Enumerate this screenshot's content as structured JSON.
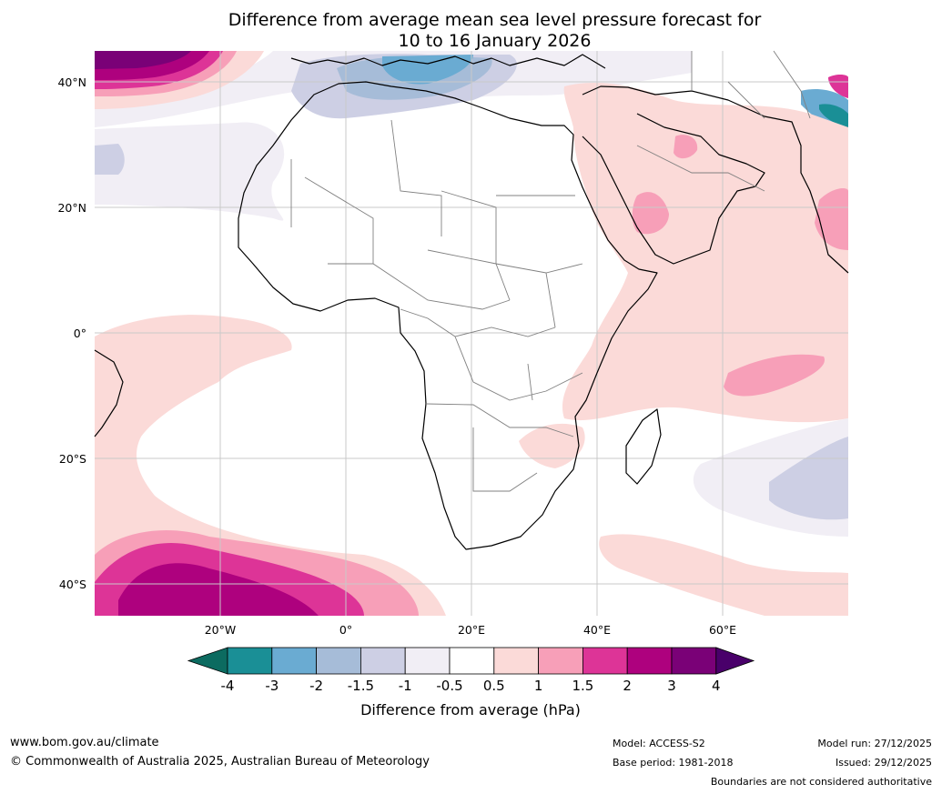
{
  "title": {
    "line1": "Difference from average mean sea level pressure forecast for",
    "line2": "10 to 16 January 2026"
  },
  "axes": {
    "lat_labels": [
      "40°N",
      "20°N",
      "0°",
      "20°S",
      "40°S"
    ],
    "lon_labels": [
      "20°W",
      "0°",
      "20°E",
      "40°E",
      "60°E"
    ]
  },
  "colorbar": {
    "ticks": [
      "-4",
      "-3",
      "-2",
      "-1.5",
      "-1",
      "-0.5",
      "0.5",
      "1",
      "1.5",
      "2",
      "3",
      "4"
    ],
    "colors": [
      "#0c6b60",
      "#1a8f96",
      "#6aabd2",
      "#a6bcd8",
      "#cdcfe4",
      "#f1eef5",
      "#ffffff",
      "#fbdad8",
      "#f79fb8",
      "#dd3497",
      "#ae017e",
      "#7a0177",
      "#49006a"
    ],
    "label": "Difference from average (hPa)"
  },
  "footer": {
    "website": "www.bom.gov.au/climate",
    "copyright": "© Commonwealth of Australia 2025, Australian Bureau of Meteorology",
    "model": "Model: ACCESS-S2",
    "base_period": "Base period: 1981-2018",
    "model_run": "Model run: 27/12/2025",
    "issued": "Issued: 29/12/2025",
    "disclaimer": "Boundaries are not considered authoritative"
  }
}
